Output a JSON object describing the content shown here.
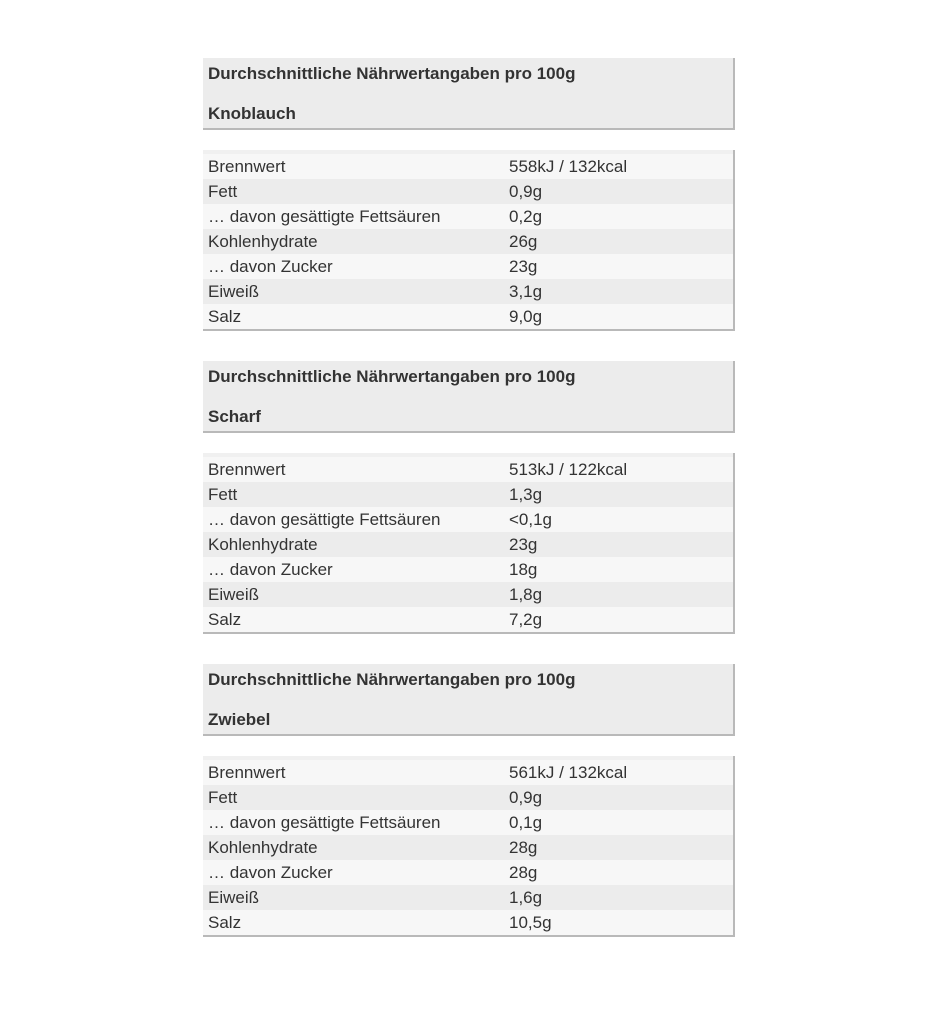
{
  "sections": [
    {
      "header_title": "Durchschnittliche Nährwertangaben pro 100g",
      "variant": "Knoblauch",
      "rows": [
        {
          "label": "Brennwert",
          "value": "558kJ / 132kcal"
        },
        {
          "label": "Fett",
          "value": "0,9g"
        },
        {
          "label": "… davon gesättigte Fettsäuren",
          "value": "0,2g"
        },
        {
          "label": "Kohlenhydrate",
          "value": "26g"
        },
        {
          "label": "… davon Zucker",
          "value": "23g"
        },
        {
          "label": "Eiweiß",
          "value": "3,1g"
        },
        {
          "label": "Salz",
          "value": "9,0g"
        }
      ]
    },
    {
      "header_title": "Durchschnittliche Nährwertangaben pro 100g",
      "variant": "Scharf",
      "rows": [
        {
          "label": "Brennwert",
          "value": "513kJ / 122kcal"
        },
        {
          "label": "Fett",
          "value": "1,3g"
        },
        {
          "label": "… davon gesättigte Fettsäuren",
          "value": "<0,1g"
        },
        {
          "label": "Kohlenhydrate",
          "value": "23g"
        },
        {
          "label": "… davon Zucker",
          "value": "18g"
        },
        {
          "label": "Eiweiß",
          "value": "1,8g"
        },
        {
          "label": "Salz",
          "value": "7,2g"
        }
      ]
    },
    {
      "header_title": "Durchschnittliche Nährwertangaben pro 100g",
      "variant": "Zwiebel",
      "rows": [
        {
          "label": "Brennwert",
          "value": "561kJ / 132kcal"
        },
        {
          "label": "Fett",
          "value": "0,9g"
        },
        {
          "label": "… davon gesättigte Fettsäuren",
          "value": "0,1g"
        },
        {
          "label": "Kohlenhydrate",
          "value": "28g"
        },
        {
          "label": "… davon Zucker",
          "value": "28g"
        },
        {
          "label": "Eiweiß",
          "value": "1,6g"
        },
        {
          "label": "Salz",
          "value": "10,5g"
        }
      ]
    }
  ]
}
